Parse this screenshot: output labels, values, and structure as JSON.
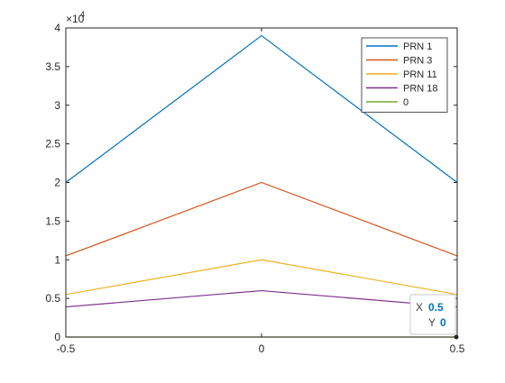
{
  "chart_data": {
    "type": "line",
    "x": [
      -0.5,
      0,
      0.5
    ],
    "xlim": [
      -0.5,
      0.5
    ],
    "ylim": [
      0,
      40000
    ],
    "x_ticks": [
      -0.5,
      0,
      0.5
    ],
    "x_tick_labels": [
      "-0.5",
      "0",
      "0.5"
    ],
    "y_ticks": [
      0,
      5000,
      10000,
      15000,
      20000,
      25000,
      30000,
      35000,
      40000
    ],
    "y_tick_labels": [
      "0",
      "0.5",
      "1",
      "1.5",
      "2",
      "2.5",
      "3",
      "3.5",
      "4"
    ],
    "y_exponent_base": "×10",
    "y_exponent_power": "4",
    "grid": false,
    "legend_position": "top-right",
    "series": [
      {
        "name": "PRN 1",
        "values": [
          20000,
          39000,
          20000
        ],
        "color": "#0072BD"
      },
      {
        "name": "PRN 3",
        "values": [
          10500,
          20000,
          10500
        ],
        "color": "#D95319"
      },
      {
        "name": "PRN 11",
        "values": [
          5500,
          10000,
          5500
        ],
        "color": "#EDB120"
      },
      {
        "name": "PRN 18",
        "values": [
          3900,
          6000,
          3900
        ],
        "color": "#7E2F8E"
      },
      {
        "name": "0",
        "values": [
          0,
          0,
          0
        ],
        "color": "#77AC30"
      }
    ],
    "datatip": {
      "x_label": "X",
      "x_value": "0.5",
      "y_label": "Y",
      "y_value": "0",
      "x": 0.5,
      "y": 0
    }
  }
}
